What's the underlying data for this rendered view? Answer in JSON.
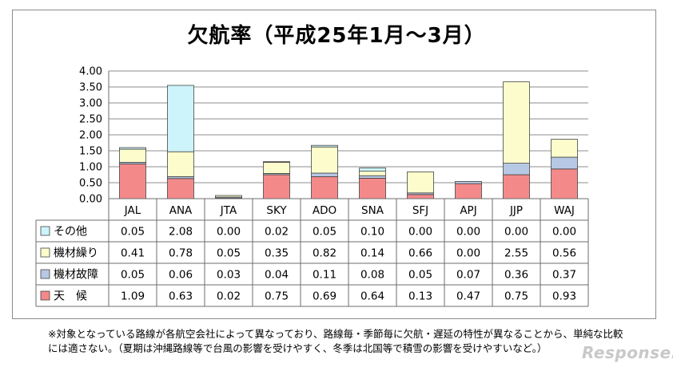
{
  "chart_data": {
    "type": "bar",
    "stacked": true,
    "title": "欠航率（平成25年1月～3月）",
    "categories": [
      "JAL",
      "ANA",
      "JTA",
      "SKY",
      "ADO",
      "SNA",
      "SFJ",
      "APJ",
      "JJP",
      "WAJ"
    ],
    "ylim": [
      0,
      4.0
    ],
    "yticks": [
      "0.00",
      "0.50",
      "1.00",
      "1.50",
      "2.00",
      "2.50",
      "3.00",
      "3.50",
      "4.00"
    ],
    "grid": true,
    "series": [
      {
        "name": "天　候",
        "color": "#f4898a",
        "values": [
          1.09,
          0.63,
          0.02,
          0.75,
          0.69,
          0.64,
          0.13,
          0.47,
          0.75,
          0.93
        ],
        "labels": [
          "1.09",
          "0.63",
          "0.02",
          "0.75",
          "0.69",
          "0.64",
          "0.13",
          "0.47",
          "0.75",
          "0.93"
        ]
      },
      {
        "name": "機材故障",
        "color": "#b6c8e4",
        "values": [
          0.05,
          0.06,
          0.03,
          0.04,
          0.11,
          0.08,
          0.05,
          0.07,
          0.36,
          0.37
        ],
        "labels": [
          "0.05",
          "0.06",
          "0.03",
          "0.04",
          "0.11",
          "0.08",
          "0.05",
          "0.07",
          "0.36",
          "0.37"
        ]
      },
      {
        "name": "機材繰り",
        "color": "#fdfccc",
        "values": [
          0.41,
          0.78,
          0.05,
          0.35,
          0.82,
          0.14,
          0.66,
          0.0,
          2.55,
          0.56
        ],
        "labels": [
          "0.41",
          "0.78",
          "0.05",
          "0.35",
          "0.82",
          "0.14",
          "0.66",
          "0.00",
          "2.55",
          "0.56"
        ]
      },
      {
        "name": "その他",
        "color": "#ccf4fa",
        "values": [
          0.05,
          2.08,
          0.0,
          0.02,
          0.05,
          0.1,
          0.0,
          0.0,
          0.0,
          0.0
        ],
        "labels": [
          "0.05",
          "2.08",
          "0.00",
          "0.02",
          "0.05",
          "0.10",
          "0.00",
          "0.00",
          "0.00",
          "0.00"
        ]
      }
    ],
    "table_row_order": [
      "その他",
      "機材繰り",
      "機材故障",
      "天　候"
    ]
  },
  "note": {
    "line1": "※対象となっている路線が各航空会社によって異なっており、路線毎・季節毎に欠航・遅延の特性が異なることから、単純な比較",
    "line2": "には適さない。（夏期は沖縄路線等で台風の影響を受けやすく、冬季は北国等で積雪の影響を受けやすいなど。）"
  },
  "watermark": "Response."
}
